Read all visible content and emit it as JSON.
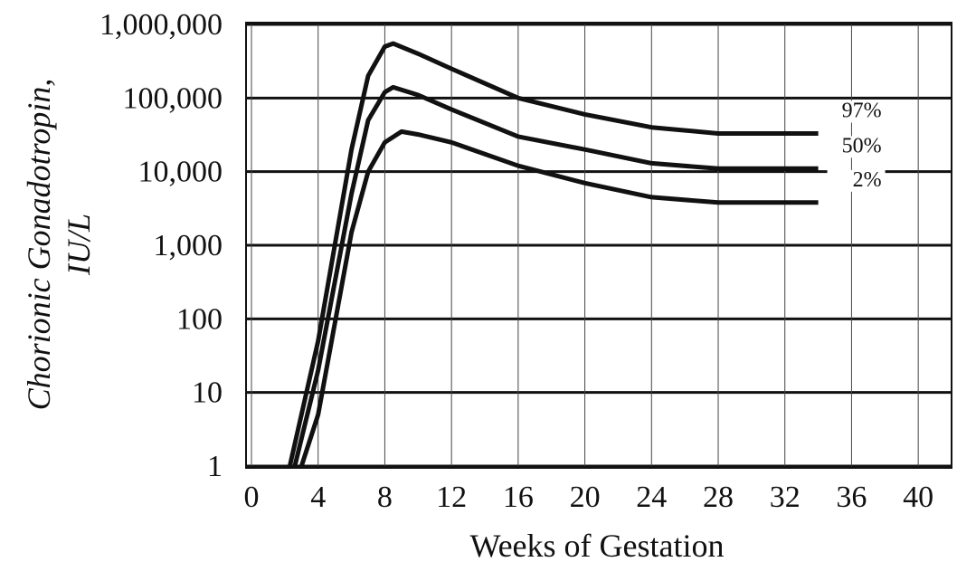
{
  "chart_data": {
    "type": "line",
    "xlabel": "Weeks of Gestation",
    "ylabel": [
      "Chorionic Gonadotropin,",
      "IU/L"
    ],
    "log_y": true,
    "grid": true,
    "color": "#111111",
    "xlim": [
      0,
      42
    ],
    "ylim": [
      1,
      1000000
    ],
    "xticks": [
      0,
      4,
      8,
      12,
      16,
      20,
      24,
      28,
      32,
      36,
      40
    ],
    "yticks": [
      1,
      10,
      100,
      {
        "value": 1000,
        "label": "1,000"
      },
      {
        "value": 10000,
        "label": "10,000"
      },
      {
        "value": 100000,
        "label": "100,000"
      },
      {
        "value": 1000000,
        "label": "1,000,000"
      }
    ],
    "series": [
      {
        "name": "97%",
        "color": "#111111",
        "x": [
          2.3,
          4,
          6,
          7,
          8,
          8.5,
          10,
          12,
          16,
          20,
          24,
          28,
          32,
          34
        ],
        "values": [
          1,
          50,
          20000,
          200000,
          500000,
          550000,
          400000,
          250000,
          100000,
          60000,
          40000,
          33000,
          33000,
          33000
        ]
      },
      {
        "name": "50%",
        "color": "#111111",
        "x": [
          2.6,
          4,
          6,
          7,
          8,
          8.5,
          10,
          12,
          16,
          20,
          24,
          28,
          32,
          34
        ],
        "values": [
          1,
          20,
          5000,
          50000,
          120000,
          140000,
          110000,
          70000,
          30000,
          20000,
          13000,
          11000,
          11000,
          11000
        ]
      },
      {
        "name": "2%",
        "color": "#111111",
        "x": [
          3,
          4,
          6,
          7,
          8,
          9,
          10,
          12,
          16,
          20,
          24,
          28,
          32,
          34
        ],
        "values": [
          1,
          5,
          1500,
          10000,
          25000,
          35000,
          32000,
          25000,
          12000,
          7000,
          4500,
          3800,
          3800,
          3800
        ]
      }
    ]
  }
}
